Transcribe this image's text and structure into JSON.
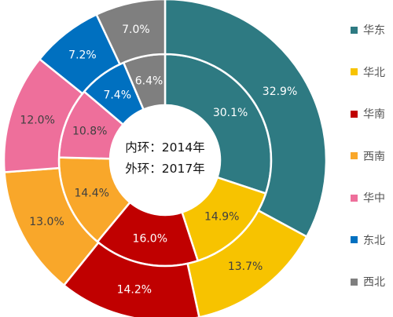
{
  "chart_data": {
    "type": "pie",
    "variant": "nested-donut",
    "categories": [
      "华东",
      "华北",
      "华南",
      "西南",
      "华中",
      "东北",
      "西北"
    ],
    "colors": [
      "#2e7a82",
      "#f7c300",
      "#c00000",
      "#f9a72a",
      "#ee6f9b",
      "#0070c0",
      "#7f7f7f"
    ],
    "series": [
      {
        "name": "2014年",
        "ring": "inner",
        "values": [
          30.1,
          14.9,
          16.0,
          14.4,
          10.8,
          7.4,
          6.4
        ],
        "labels": [
          "30.1%",
          "14.9%",
          "16.0%",
          "14.4%",
          "10.8%",
          "7.4%",
          "6.4%"
        ]
      },
      {
        "name": "2017年",
        "ring": "outer",
        "values": [
          32.9,
          13.7,
          14.2,
          13.0,
          12.0,
          7.2,
          7.0
        ],
        "labels": [
          "32.9%",
          "13.7%",
          "14.2%",
          "13.0%",
          "12.0%",
          "7.2%",
          "7.0%"
        ]
      }
    ],
    "center_labels": [
      "内环：2014年",
      "外环：2017年"
    ],
    "legend_position": "right"
  }
}
